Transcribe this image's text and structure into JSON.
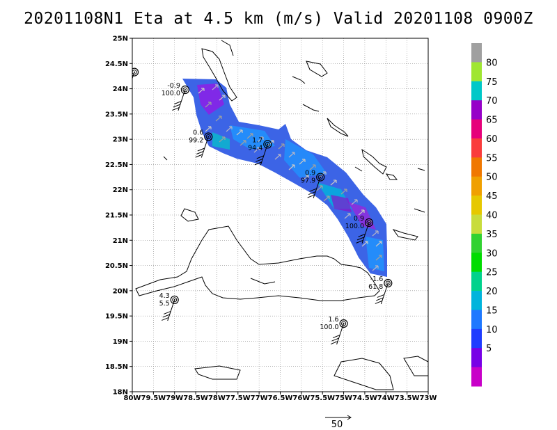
{
  "title": "20201108N1 Eta at 4.5 km (m/s) Valid 20201108 0900Z",
  "axes": {
    "lat_labels": [
      "25N",
      "24.5N",
      "24N",
      "23.5N",
      "23N",
      "22.5N",
      "22N",
      "21.5N",
      "21N",
      "20.5N",
      "20N",
      "19.5N",
      "19N",
      "18.5N",
      "18N"
    ],
    "lon_labels": [
      "80W",
      "79.5W",
      "79W",
      "78.5W",
      "78W",
      "77.5W",
      "77W",
      "76.5W",
      "76W",
      "75.5W",
      "75W",
      "74.5W",
      "74W",
      "73.5W",
      "73W"
    ],
    "lat_range": [
      18,
      25
    ],
    "lon_range": [
      -80,
      -73
    ],
    "grid": "dotted"
  },
  "colorbar": {
    "labels": [
      "80",
      "75",
      "70",
      "65",
      "60",
      "55",
      "50",
      "45",
      "40",
      "35",
      "30",
      "25",
      "20",
      "15",
      "10",
      "5"
    ],
    "colors": [
      "#a0a0a0",
      "#a0e632",
      "#00c8c8",
      "#9600c8",
      "#e6007a",
      "#fa3c3c",
      "#f07800",
      "#f0a000",
      "#e6c800",
      "#c8dc3c",
      "#32d232",
      "#00dc00",
      "#00d28c",
      "#00b4dc",
      "#1e78ff",
      "#1e3cff",
      "#7800e6",
      "#c800c8"
    ]
  },
  "reference_vector": {
    "label": "50"
  },
  "stations": [
    {
      "lon": -79.95,
      "lat": 24.33,
      "top": "",
      "bottom": ""
    },
    {
      "lon": -78.75,
      "lat": 23.98,
      "top": "-0.9",
      "bottom": "100.0"
    },
    {
      "lon": -78.2,
      "lat": 23.05,
      "top": "0.6",
      "bottom": "99.2"
    },
    {
      "lon": -76.8,
      "lat": 22.9,
      "top": "1.7",
      "bottom": "94.4"
    },
    {
      "lon": -75.55,
      "lat": 22.25,
      "top": "0.9",
      "bottom": "97.9"
    },
    {
      "lon": -74.4,
      "lat": 21.35,
      "top": "0.9",
      "bottom": "100.0"
    },
    {
      "lon": -73.95,
      "lat": 20.15,
      "top": "-1.6",
      "bottom": "61.8"
    },
    {
      "lon": -79.0,
      "lat": 19.82,
      "top": "4.3",
      "bottom": "5.5"
    },
    {
      "lon": -75.0,
      "lat": 19.35,
      "top": "1.6",
      "bottom": "100.0"
    }
  ]
}
